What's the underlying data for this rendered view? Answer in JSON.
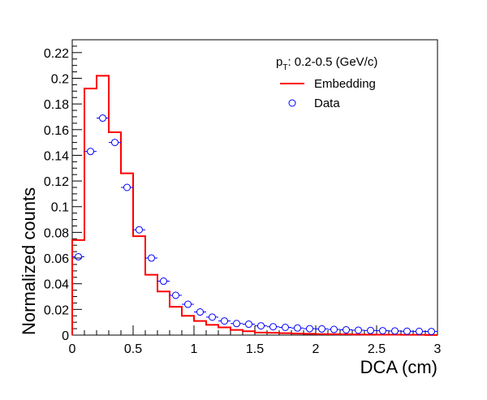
{
  "chart_data": {
    "type": "step-histogram-with-points",
    "xlabel": "DCA (cm)",
    "ylabel": "Normalized counts",
    "xlim": [
      0,
      3
    ],
    "ylim": [
      0,
      0.23
    ],
    "xticks": [
      0,
      0.5,
      1,
      1.5,
      2,
      2.5,
      3
    ],
    "xtick_labels": [
      "0",
      "0.5",
      "1",
      "1.5",
      "2",
      "2.5",
      "3"
    ],
    "yticks": [
      0,
      0.02,
      0.04,
      0.06,
      0.08,
      0.1,
      0.12,
      0.14,
      0.16,
      0.18,
      0.2,
      0.22
    ],
    "ytick_labels": [
      "0",
      "0.02",
      "0.04",
      "0.06",
      "0.08",
      "0.1",
      "0.12",
      "0.14",
      "0.16",
      "0.18",
      "0.2",
      "0.22"
    ],
    "grid": false,
    "legend_position": "top-right",
    "legend_header": {
      "p": "p",
      "sub": "T",
      "rest": ": 0.2-0.5 (GeV/c)"
    },
    "series": [
      {
        "name": "Embedding",
        "style": "step",
        "color": "#ff0000",
        "bin_width": 0.1,
        "bin_starts": [
          0.0,
          0.1,
          0.2,
          0.3,
          0.4,
          0.5,
          0.6,
          0.7,
          0.8,
          0.9,
          1.0,
          1.1,
          1.2,
          1.3,
          1.4,
          1.5,
          1.6,
          1.7,
          1.8,
          1.9,
          2.0,
          2.1,
          2.2,
          2.3,
          2.4,
          2.5,
          2.6,
          2.7,
          2.8,
          2.9
        ],
        "values": [
          0.074,
          0.192,
          0.202,
          0.158,
          0.126,
          0.077,
          0.047,
          0.034,
          0.022,
          0.015,
          0.011,
          0.008,
          0.006,
          0.004,
          0.003,
          0.002,
          0.0018,
          0.0015,
          0.0012,
          0.001,
          0.0008,
          0.0007,
          0.0006,
          0.0005,
          0.0004,
          0.0003,
          0.0003,
          0.0002,
          0.0002,
          0.0001
        ]
      },
      {
        "name": "Data",
        "style": "markers",
        "color": "#0000ff",
        "x": [
          0.05,
          0.15,
          0.25,
          0.35,
          0.45,
          0.55,
          0.65,
          0.75,
          0.85,
          0.95,
          1.05,
          1.15,
          1.25,
          1.35,
          1.45,
          1.55,
          1.65,
          1.75,
          1.85,
          1.95,
          2.05,
          2.15,
          2.25,
          2.35,
          2.45,
          2.55,
          2.65,
          2.75,
          2.85,
          2.95
        ],
        "values": [
          0.061,
          0.143,
          0.169,
          0.15,
          0.115,
          0.082,
          0.06,
          0.042,
          0.031,
          0.024,
          0.018,
          0.014,
          0.011,
          0.009,
          0.0085,
          0.0072,
          0.0065,
          0.006,
          0.0055,
          0.005,
          0.0048,
          0.0044,
          0.0041,
          0.0038,
          0.0036,
          0.0034,
          0.0032,
          0.003,
          0.0029,
          0.0028
        ]
      }
    ]
  }
}
